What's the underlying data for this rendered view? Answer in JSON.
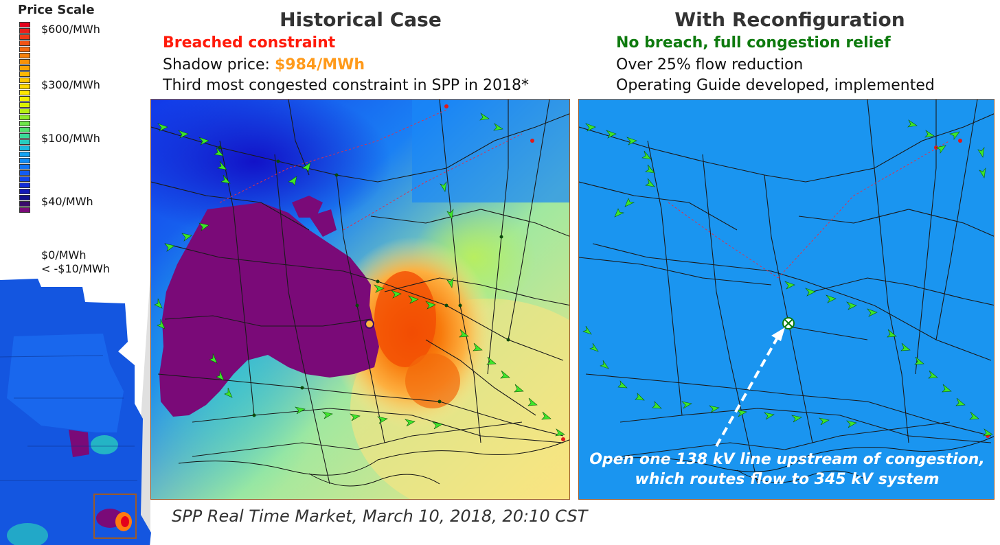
{
  "legend": {
    "title": "Price Scale",
    "labels": [
      "$600/MWh",
      "$300/MWh",
      "$100/MWh",
      "$40/MWh",
      "$0/MWh",
      "< -$10/MWh"
    ],
    "colors": [
      "#e3001b",
      "#e81e1a",
      "#ee3a17",
      "#f25414",
      "#f56a10",
      "#f7800c",
      "#f99208",
      "#fba405",
      "#fdb603",
      "#fec702",
      "#ffd800",
      "#ffe600",
      "#f2ee00",
      "#d8f000",
      "#b6ee14",
      "#90ea2c",
      "#6ee64a",
      "#52e070",
      "#3ad898",
      "#28ccbe",
      "#1cbae0",
      "#14a4f4",
      "#128cf6",
      "#1274f4",
      "#125cf0",
      "#1244e8",
      "#122cd8",
      "#1218b8",
      "#12108c",
      "#3a0a6a",
      "#7a0a78"
    ]
  },
  "left_panel": {
    "title": "Historical Case",
    "line1": "Breached constraint",
    "line2_prefix": "Shadow price: ",
    "line2_value": "$984/MWh",
    "line3": "Third most congested constraint in SPP in 2018*"
  },
  "right_panel": {
    "title": "With Reconfiguration",
    "line1": "No breach, full congestion relief",
    "line2": "Over 25% flow reduction",
    "line3": "Operating Guide developed, implemented",
    "annotation_line1": "Open one 138 kV line upstream of congestion,",
    "annotation_line2": "which routes flow to 345 kV system"
  },
  "caption": "SPP Real Time Market, March 10, 2018, 20:10 CST",
  "colors": {
    "background_blue": "#1a95f0",
    "negative_purple": "#7a0a78",
    "congestion_orange": "#ff5a00",
    "arrow_green": "#3ee62a"
  }
}
